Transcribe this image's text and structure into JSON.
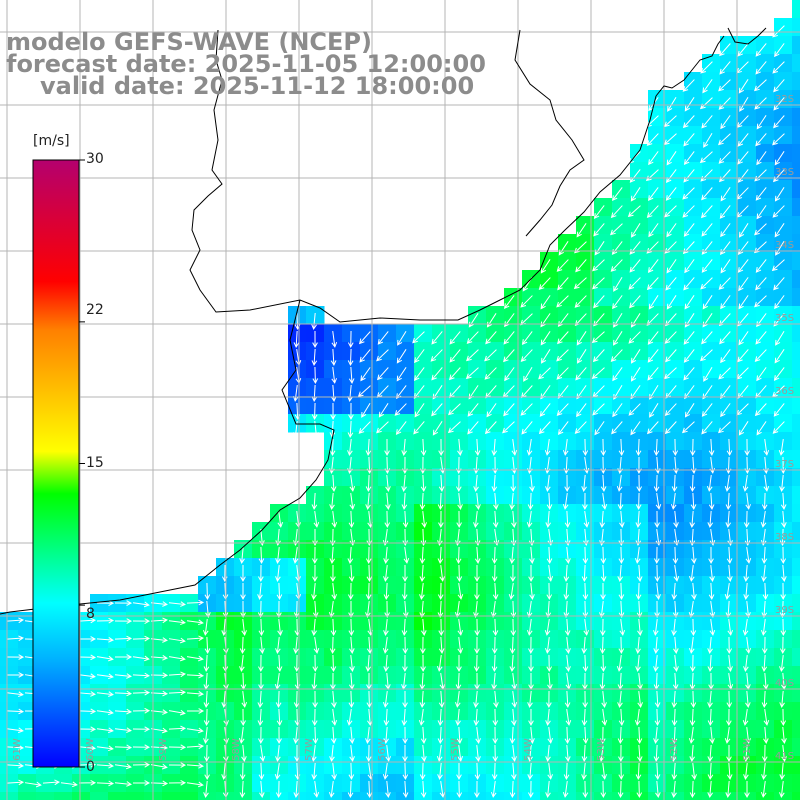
{
  "title": {
    "line1": "modelo GEFS-WAVE (NCEP)",
    "line2": "forecast date: 2025-11-05 12:00:00",
    "line3": "valid date: 2025-11-12 18:00:00"
  },
  "colorbar": {
    "unit_label": "[m/s]",
    "ticks": [
      "30",
      "22",
      "15",
      "8",
      "0"
    ],
    "tick_values": [
      30,
      22,
      15,
      8,
      0
    ],
    "range": [
      0,
      30
    ],
    "colors": [
      "#0000ff",
      "#00b4ff",
      "#00ffff",
      "#00ff00",
      "#ffff00",
      "#ff8000",
      "#ff0000",
      "#b4006e"
    ]
  },
  "grid": {
    "lat_labels": [
      "32S",
      "33S",
      "34S",
      "35S",
      "36S",
      "37S",
      "38S",
      "39S",
      "40S",
      "41S"
    ],
    "lon_labels": [
      "61W",
      "60W",
      "59W",
      "58W",
      "57W",
      "56W",
      "55W",
      "54W",
      "53W",
      "52W",
      "51W"
    ]
  },
  "colors": {
    "land": "#ffffff",
    "coast": "#000000",
    "grid": "#b4b4b4",
    "arrow": "#ffffff",
    "title": "#8c8c8c"
  }
}
